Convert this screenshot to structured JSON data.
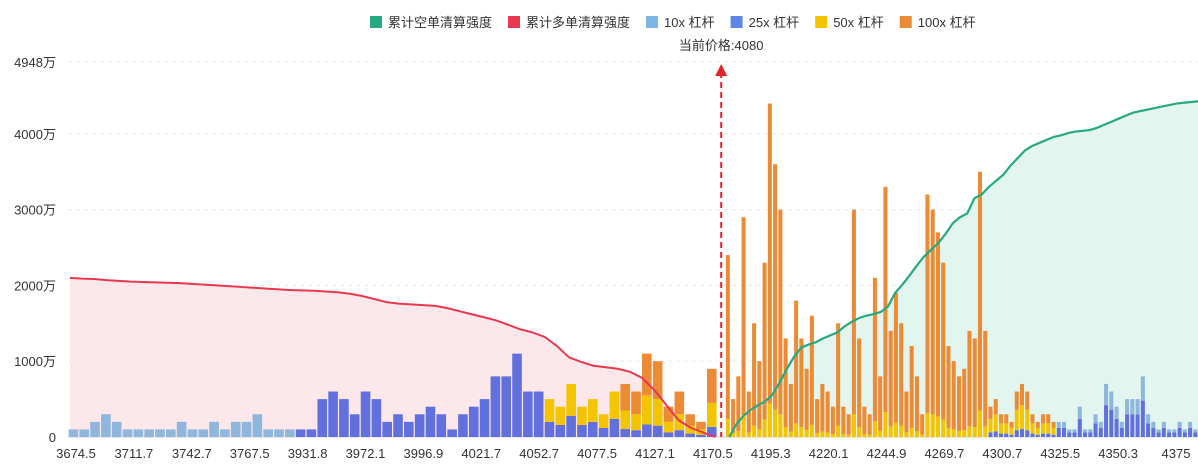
{
  "chart_data": {
    "type": "bar",
    "title": "",
    "xlabel": "",
    "ylabel": "",
    "ylim": [
      0,
      49480000
    ],
    "y_ticks": [
      {
        "value": 0,
        "label": "0"
      },
      {
        "value": 10000000,
        "label": "1000万"
      },
      {
        "value": 20000000,
        "label": "2000万"
      },
      {
        "value": 30000000,
        "label": "3000万"
      },
      {
        "value": 40000000,
        "label": "4000万"
      },
      {
        "value": 49480000,
        "label": "4948万"
      }
    ],
    "x_range": [
      3674.5,
      4376.0
    ],
    "x_ticks": [
      "3674.5",
      "3711.7",
      "3742.7",
      "3767.5",
      "3931.8",
      "3972.1",
      "3996.9",
      "4021.7",
      "4052.7",
      "4077.5",
      "4127.1",
      "4170.5",
      "4195.3",
      "4220.1",
      "4244.9",
      "4269.7",
      "4300.7",
      "4325.5",
      "4350.3",
      "4375"
    ],
    "current_price": {
      "value": 4080,
      "label": "当前价格:4080"
    },
    "grid": true,
    "legend_position": "top-right",
    "legend": [
      {
        "key": "short_cum",
        "label": "累计空单清算强度",
        "color": "#26a883"
      },
      {
        "key": "long_cum",
        "label": "累计多单清算强度",
        "color": "#e8384f"
      },
      {
        "key": "lev10",
        "label": "10x 杠杆",
        "color": "#7cb5e6"
      },
      {
        "key": "lev25",
        "label": "25x 杠杆",
        "color": "#5b86e5"
      },
      {
        "key": "lev50",
        "label": "50x 杠杆",
        "color": "#f5c400"
      },
      {
        "key": "lev100",
        "label": "100x 杠杆",
        "color": "#ec8b35"
      }
    ],
    "bars_left": [
      1,
      1,
      2,
      3,
      2,
      1,
      1,
      1,
      1,
      1,
      2,
      1,
      1,
      2,
      1,
      2,
      2,
      3,
      1,
      1,
      1,
      1,
      1,
      5,
      6,
      5,
      3,
      6,
      5,
      2,
      3,
      2,
      3,
      4,
      3,
      1,
      3,
      4,
      5,
      8,
      8,
      11,
      6,
      6,
      5,
      4,
      7,
      4,
      5,
      3,
      6,
      7,
      6,
      11,
      10,
      4,
      6,
      3,
      2,
      9
    ],
    "bars_right": [
      24,
      5,
      8,
      29,
      6,
      15,
      10,
      23,
      44,
      36,
      30,
      13,
      7,
      18,
      13,
      9,
      16,
      5,
      7,
      6,
      4,
      15,
      4,
      3,
      30,
      13,
      4,
      3,
      21,
      8,
      33,
      14,
      19,
      15,
      6,
      12,
      8,
      3,
      32,
      30,
      27,
      23,
      12,
      10,
      8,
      9,
      14,
      13,
      35,
      14,
      4,
      5,
      3,
      3,
      2,
      6,
      7,
      6,
      3,
      2,
      3,
      3,
      2,
      2,
      2,
      1,
      1,
      4,
      1,
      1,
      3,
      2,
      7,
      6,
      4,
      2,
      5,
      5,
      5,
      8,
      3,
      2,
      1,
      2,
      1,
      1,
      2,
      1,
      2,
      1
    ],
    "series": [
      {
        "name": "10x 杠杆",
        "values": [
          1.0,
          1.1,
          2.0,
          3.1,
          2.2,
          1.0,
          1.1,
          0.8,
          0.7,
          0.8,
          1.9,
          1.0,
          0.9,
          1.9,
          1.2,
          2.0,
          2.1,
          2.8,
          1.2,
          1.0,
          0.9,
          0.8,
          1.0,
          0.9,
          0.8,
          0.9,
          0.8,
          0.9,
          0.7,
          0.8,
          0.6,
          0.7,
          0.8,
          0.9,
          0.8,
          0.6,
          0.7,
          0.8,
          0.7,
          0.9,
          0.7,
          0.8,
          0.6,
          0.6,
          0.5,
          0.4,
          0.6,
          0.5,
          0.4,
          0.4,
          0.3,
          0.4,
          0.3,
          0.4,
          0.4,
          0.3,
          0.3,
          0.2,
          0.2,
          0.3,
          0.2,
          0.4,
          0.3,
          0.3,
          0.4,
          0.3,
          0.2,
          0.3,
          0.3,
          0.3,
          0.3,
          0.3,
          0.3,
          0.2,
          0.3,
          0.3,
          0.3,
          0.2,
          0.3,
          0.2,
          0.3,
          0.3,
          0.2,
          0.3,
          0.3,
          0.3,
          0.3,
          0.3,
          0.2,
          0.3,
          0.2,
          0.3,
          0.2,
          0.3,
          0.2,
          0.3,
          0.2,
          0.3,
          0.3,
          0.2,
          0.2,
          0.2,
          0.2,
          0.2,
          0.2,
          0.2,
          0.2,
          0.2,
          0.2,
          0.2,
          0.2,
          0.2,
          0.2,
          0.3,
          0.2,
          0.2,
          0.2,
          0.2,
          0.2,
          0.2,
          0.2,
          0.2,
          0.2,
          0.3,
          0.2,
          0.2,
          0.2,
          0.3,
          0.2,
          0.2,
          0.3,
          0.2,
          0.3,
          0.2,
          0.3,
          0.2,
          0.2,
          0.3,
          0.2,
          0.2,
          1.0,
          1.0,
          1.0,
          1.0,
          1.2,
          1.1,
          1.0,
          0.9,
          1.0,
          1.1,
          0.9,
          1.0,
          1.0,
          1.0,
          0.9,
          1.1,
          1.0,
          0.9,
          1.0,
          1.0,
          1.0,
          0.9,
          1.0,
          1.1,
          1.0,
          1.0,
          1.0,
          1.0,
          1.0,
          0.9,
          1.0,
          1.0,
          1.0,
          1.0,
          1.0,
          2.2,
          1.0
        ]
      },
      {
        "name": "25x 杠杆",
        "values": []
      },
      {
        "name": "50x 杠杆",
        "values": []
      },
      {
        "name": "100x 杠杆",
        "values": []
      }
    ],
    "cumulative_long_wan": [
      2100,
      2090,
      2085,
      2070,
      2060,
      2050,
      2045,
      2040,
      2035,
      2030,
      2020,
      2010,
      2000,
      1990,
      1980,
      1970,
      1960,
      1950,
      1940,
      1935,
      1930,
      1920,
      1910,
      1890,
      1860,
      1820,
      1780,
      1760,
      1750,
      1740,
      1730,
      1700,
      1660,
      1620,
      1580,
      1540,
      1480,
      1420,
      1380,
      1320,
      1200,
      1050,
      990,
      940,
      920,
      900,
      860,
      780,
      620,
      420,
      220,
      120,
      60,
      0
    ],
    "cumulative_short_wan": [
      0,
      170,
      280,
      360,
      420,
      470,
      560,
      720,
      900,
      1060,
      1180,
      1220,
      1250,
      1300,
      1340,
      1380,
      1460,
      1520,
      1570,
      1600,
      1620,
      1650,
      1720,
      1900,
      2010,
      2130,
      2260,
      2380,
      2470,
      2560,
      2680,
      2820,
      2900,
      2950,
      3150,
      3200,
      3300,
      3380,
      3460,
      3580,
      3680,
      3780,
      3840,
      3880,
      3920,
      3960,
      3980,
      4010,
      4030,
      4040,
      4050,
      4080,
      4120,
      4160,
      4200,
      4240,
      4280,
      4300,
      4320,
      4340,
      4360,
      4380,
      4400,
      4410,
      4420,
      4430
    ]
  }
}
